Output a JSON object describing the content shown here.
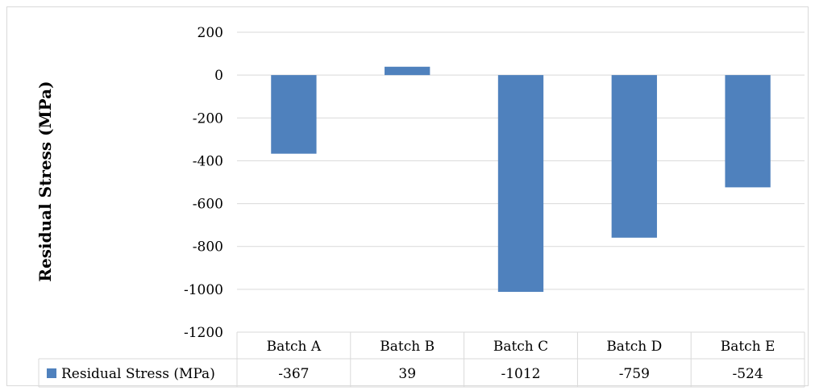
{
  "chart_data": {
    "type": "bar",
    "title": "",
    "xlabel": "",
    "ylabel": "Residual Stress (MPa)",
    "ylim": [
      -1200,
      200
    ],
    "yticks": [
      200,
      0,
      -200,
      -400,
      -600,
      -800,
      -1000,
      -1200
    ],
    "grid": true,
    "legend_position": "data-table-left",
    "categories": [
      "Batch A",
      "Batch B",
      "Batch C",
      "Batch D",
      "Batch E"
    ],
    "series": [
      {
        "name": "Residual Stress (MPa)",
        "color": "#4F81BD",
        "values": [
          -367,
          39,
          -1012,
          -759,
          -524
        ]
      }
    ],
    "data_table": {
      "show": true,
      "value_labels": [
        "-367",
        "39",
        "-1012",
        "-759",
        "-524"
      ]
    }
  }
}
